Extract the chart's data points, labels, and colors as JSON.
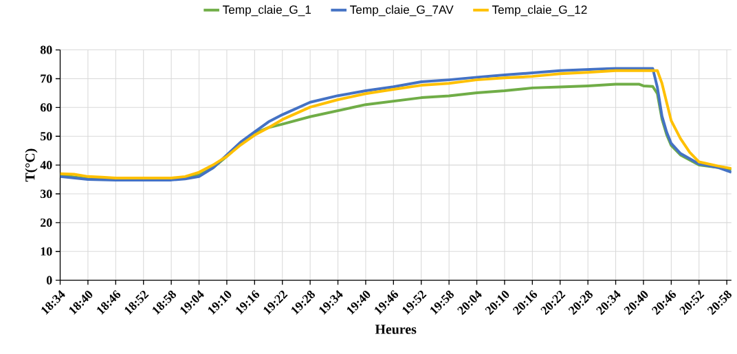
{
  "chart_data": {
    "type": "line",
    "xlabel": "Heures",
    "ylabel": "T(°C)",
    "xlim": [
      18.5667,
      20.9833
    ],
    "ylim": [
      0,
      80
    ],
    "xticks": [
      {
        "value": 18.5667,
        "label": "18:34"
      },
      {
        "value": 18.6667,
        "label": "18:40"
      },
      {
        "value": 18.7667,
        "label": "18:46"
      },
      {
        "value": 18.8667,
        "label": "18:52"
      },
      {
        "value": 18.9667,
        "label": "18:58"
      },
      {
        "value": 19.0667,
        "label": "19:04"
      },
      {
        "value": 19.1667,
        "label": "19:10"
      },
      {
        "value": 19.2667,
        "label": "19:16"
      },
      {
        "value": 19.3667,
        "label": "19:22"
      },
      {
        "value": 19.4667,
        "label": "19:28"
      },
      {
        "value": 19.5667,
        "label": "19:34"
      },
      {
        "value": 19.6667,
        "label": "19:40"
      },
      {
        "value": 19.7667,
        "label": "19:46"
      },
      {
        "value": 19.8667,
        "label": "19:52"
      },
      {
        "value": 19.9667,
        "label": "19:58"
      },
      {
        "value": 20.0667,
        "label": "20:04"
      },
      {
        "value": 20.1667,
        "label": "20:10"
      },
      {
        "value": 20.2667,
        "label": "20:16"
      },
      {
        "value": 20.3667,
        "label": "20:22"
      },
      {
        "value": 20.4667,
        "label": "20:28"
      },
      {
        "value": 20.5667,
        "label": "20:34"
      },
      {
        "value": 20.6667,
        "label": "20:40"
      },
      {
        "value": 20.7667,
        "label": "20:46"
      },
      {
        "value": 20.8667,
        "label": "20:52"
      },
      {
        "value": 20.9667,
        "label": "20:58"
      }
    ],
    "yticks": [
      0,
      10,
      20,
      30,
      40,
      50,
      60,
      70,
      80
    ],
    "grid": true,
    "legend": "top",
    "line_style": "solid",
    "series": [
      {
        "name": "Temp_claie_G_1",
        "color": "#70ad47",
        "x": [
          18.5667,
          18.6667,
          18.7667,
          18.9667,
          19.0167,
          19.0667,
          19.1167,
          19.1667,
          19.2167,
          19.2667,
          19.3167,
          19.3667,
          19.4667,
          19.5667,
          19.6667,
          19.7667,
          19.8667,
          19.9667,
          20.0667,
          20.1667,
          20.2667,
          20.3667,
          20.4667,
          20.5667,
          20.65,
          20.6667,
          20.7,
          20.7167,
          20.7333,
          20.75,
          20.7667,
          20.8,
          20.8667,
          20.9333,
          20.9833
        ],
        "values": [
          36.5,
          35.2,
          35.0,
          35.0,
          35.5,
          36.5,
          39,
          43,
          47.5,
          51,
          53,
          54.2,
          56.8,
          58.9,
          61,
          62.2,
          63.4,
          64,
          65.1,
          65.8,
          66.8,
          67.1,
          67.5,
          68.1,
          68.1,
          67.5,
          67.3,
          64.8,
          56,
          50.6,
          46.8,
          43.5,
          40,
          39.2,
          38.5
        ]
      },
      {
        "name": "Temp_claie_G_7AV",
        "color": "#4472c4",
        "x": [
          18.5667,
          18.6667,
          18.7667,
          18.9667,
          19.0167,
          19.0667,
          19.1167,
          19.1667,
          19.2167,
          19.2667,
          19.3167,
          19.3667,
          19.4667,
          19.5667,
          19.6667,
          19.7667,
          19.8667,
          19.9667,
          20.0667,
          20.1667,
          20.2667,
          20.3667,
          20.4667,
          20.5667,
          20.7,
          20.7167,
          20.7333,
          20.75,
          20.7667,
          20.8,
          20.8667,
          20.9333,
          20.9833
        ],
        "values": [
          36,
          35,
          34.8,
          34.8,
          35.2,
          36,
          39,
          43.5,
          48,
          51.5,
          55,
          57.5,
          61.8,
          64.1,
          65.8,
          67.2,
          68.9,
          69.6,
          70.5,
          71.3,
          72,
          72.8,
          73.2,
          73.6,
          73.6,
          67,
          57,
          51.5,
          47.5,
          44,
          40.4,
          39.2,
          37.5
        ]
      },
      {
        "name": "Temp_claie_G_12",
        "color": "#ffc000",
        "x": [
          18.5667,
          18.6167,
          18.6667,
          18.7167,
          18.7667,
          18.9667,
          19.0167,
          19.0667,
          19.1167,
          19.1667,
          19.2167,
          19.2667,
          19.3167,
          19.3667,
          19.4667,
          19.5667,
          19.6667,
          19.7667,
          19.8667,
          19.9667,
          20.0667,
          20.1667,
          20.2667,
          20.3667,
          20.4667,
          20.5667,
          20.7167,
          20.7333,
          20.75,
          20.7667,
          20.8,
          20.8333,
          20.8667,
          20.9333,
          20.9833
        ],
        "values": [
          37,
          36.8,
          36,
          35.8,
          35.5,
          35.5,
          36,
          37.5,
          40,
          43,
          47,
          50.4,
          53,
          55.8,
          60.1,
          62.7,
          64.8,
          66.3,
          67.7,
          68.4,
          69.6,
          70.3,
          70.8,
          71.7,
          72.2,
          72.8,
          72.8,
          68.4,
          61.8,
          55.4,
          49.2,
          44.4,
          41.1,
          39.7,
          38.8
        ]
      }
    ]
  }
}
